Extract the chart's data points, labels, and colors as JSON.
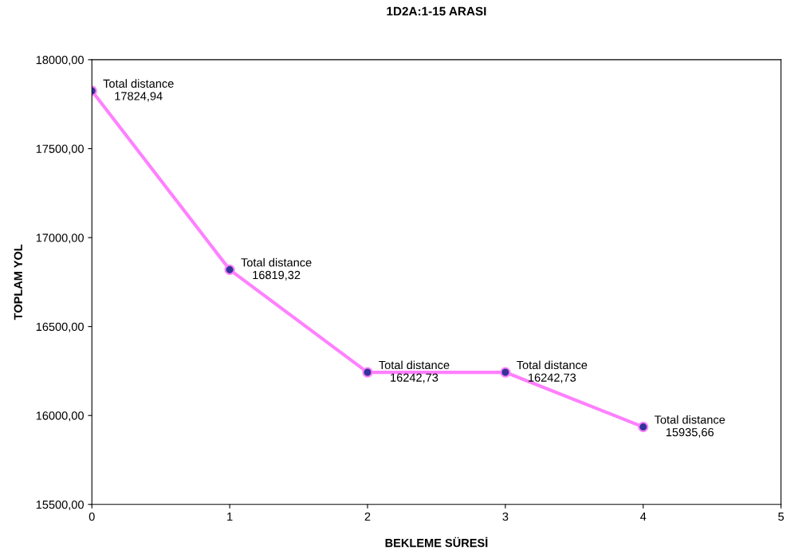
{
  "chart_data": {
    "type": "line",
    "title": "1D2A:1-15 ARASI",
    "xlabel": "BEKLEME SÜRESİ",
    "ylabel": "TOPLAM YOL",
    "x": [
      0,
      1,
      2,
      3,
      4
    ],
    "series": [
      {
        "color": "#ff80ff",
        "values": [
          17824.94,
          16819.32,
          16242.73,
          16242.73,
          15935.66
        ],
        "value_labels": [
          "Total distance\n17824,94",
          "Total distance\n16819,32",
          "Total distance\n16242,73",
          "Total distance\n16242,73",
          "Total distance\n15935,66"
        ]
      }
    ],
    "xlim": [
      0,
      5
    ],
    "xticks": [
      0,
      1,
      2,
      3,
      4,
      5
    ],
    "ylim": [
      15500,
      18000
    ],
    "yticks": [
      {
        "value": 15500,
        "label": "15500,00"
      },
      {
        "value": 16000,
        "label": "16000,00"
      },
      {
        "value": 16500,
        "label": "16500,00"
      },
      {
        "value": 17000,
        "label": "17000,00"
      },
      {
        "value": 17500,
        "label": "17500,00"
      },
      {
        "value": 18000,
        "label": "18000,00"
      }
    ],
    "marker": "circle",
    "line_style": "solid",
    "grid": false,
    "legend": false
  }
}
